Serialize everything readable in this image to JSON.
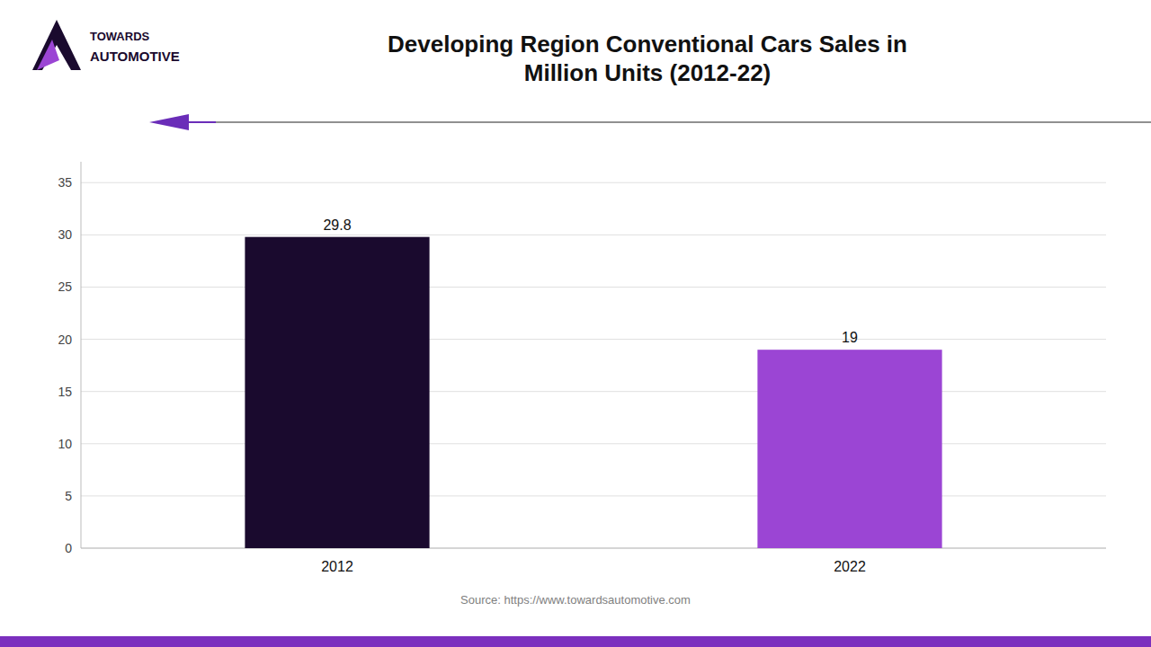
{
  "chart_data": {
    "type": "bar",
    "title": "Developing Region Conventional Cars Sales in\nMillion Units (2012-22)",
    "categories": [
      "2012",
      "2022"
    ],
    "values": [
      29.8,
      19
    ],
    "colors": [
      "#1a0a2e",
      "#9b45d4"
    ],
    "ylim": [
      0,
      37
    ],
    "yticks": [
      0,
      5,
      10,
      15,
      20,
      25,
      30,
      35
    ],
    "grid": true,
    "data_labels": true,
    "annotations": [
      "Source: https://www.towardsautomotive.com",
      "TOWARDS",
      "AUTOMOTIVE"
    ]
  }
}
